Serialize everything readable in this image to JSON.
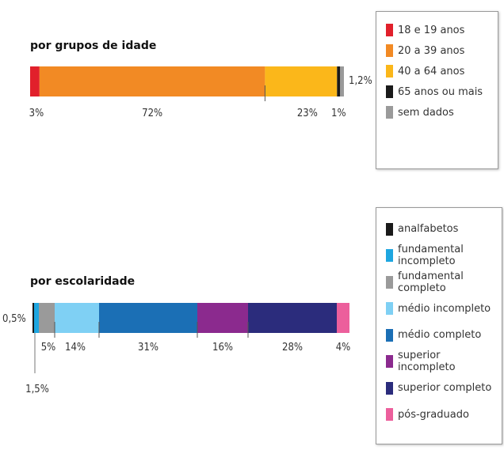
{
  "chart_data": [
    {
      "type": "bar",
      "orientation": "horizontal-stacked",
      "title": "por grupos de idade",
      "categories": [
        "18 e 19 anos",
        "20 a 39 anos",
        "40 a 64 anos",
        "65 anos ou mais",
        "sem dados"
      ],
      "values": [
        3,
        72,
        23,
        1,
        1.2
      ],
      "colors": [
        "#e1202b",
        "#f28a24",
        "#fbb71a",
        "#1a1a1a",
        "#9a9a9a"
      ],
      "value_labels": [
        "3%",
        "72%",
        "23%",
        "1%",
        "1,2%"
      ],
      "legend_position": "right"
    },
    {
      "type": "bar",
      "orientation": "horizontal-stacked",
      "title": "por escolaridade",
      "categories": [
        "analfabetos",
        "fundamental incompleto",
        "fundamental completo",
        "médio incompleto",
        "médio completo",
        "superior incompleto",
        "superior completo",
        "pós-graduado"
      ],
      "values": [
        0.5,
        1.5,
        5,
        14,
        31,
        16,
        28,
        4
      ],
      "colors": [
        "#1a1a1a",
        "#1ea6e0",
        "#9a9a9a",
        "#7fd0f4",
        "#1b6fb5",
        "#8b2a8e",
        "#2b2c7c",
        "#ec5f9c"
      ],
      "value_labels": [
        "0,5%",
        "1,5%",
        "5%",
        "14%",
        "31%",
        "16%",
        "28%",
        "4%"
      ],
      "legend_position": "right"
    }
  ]
}
